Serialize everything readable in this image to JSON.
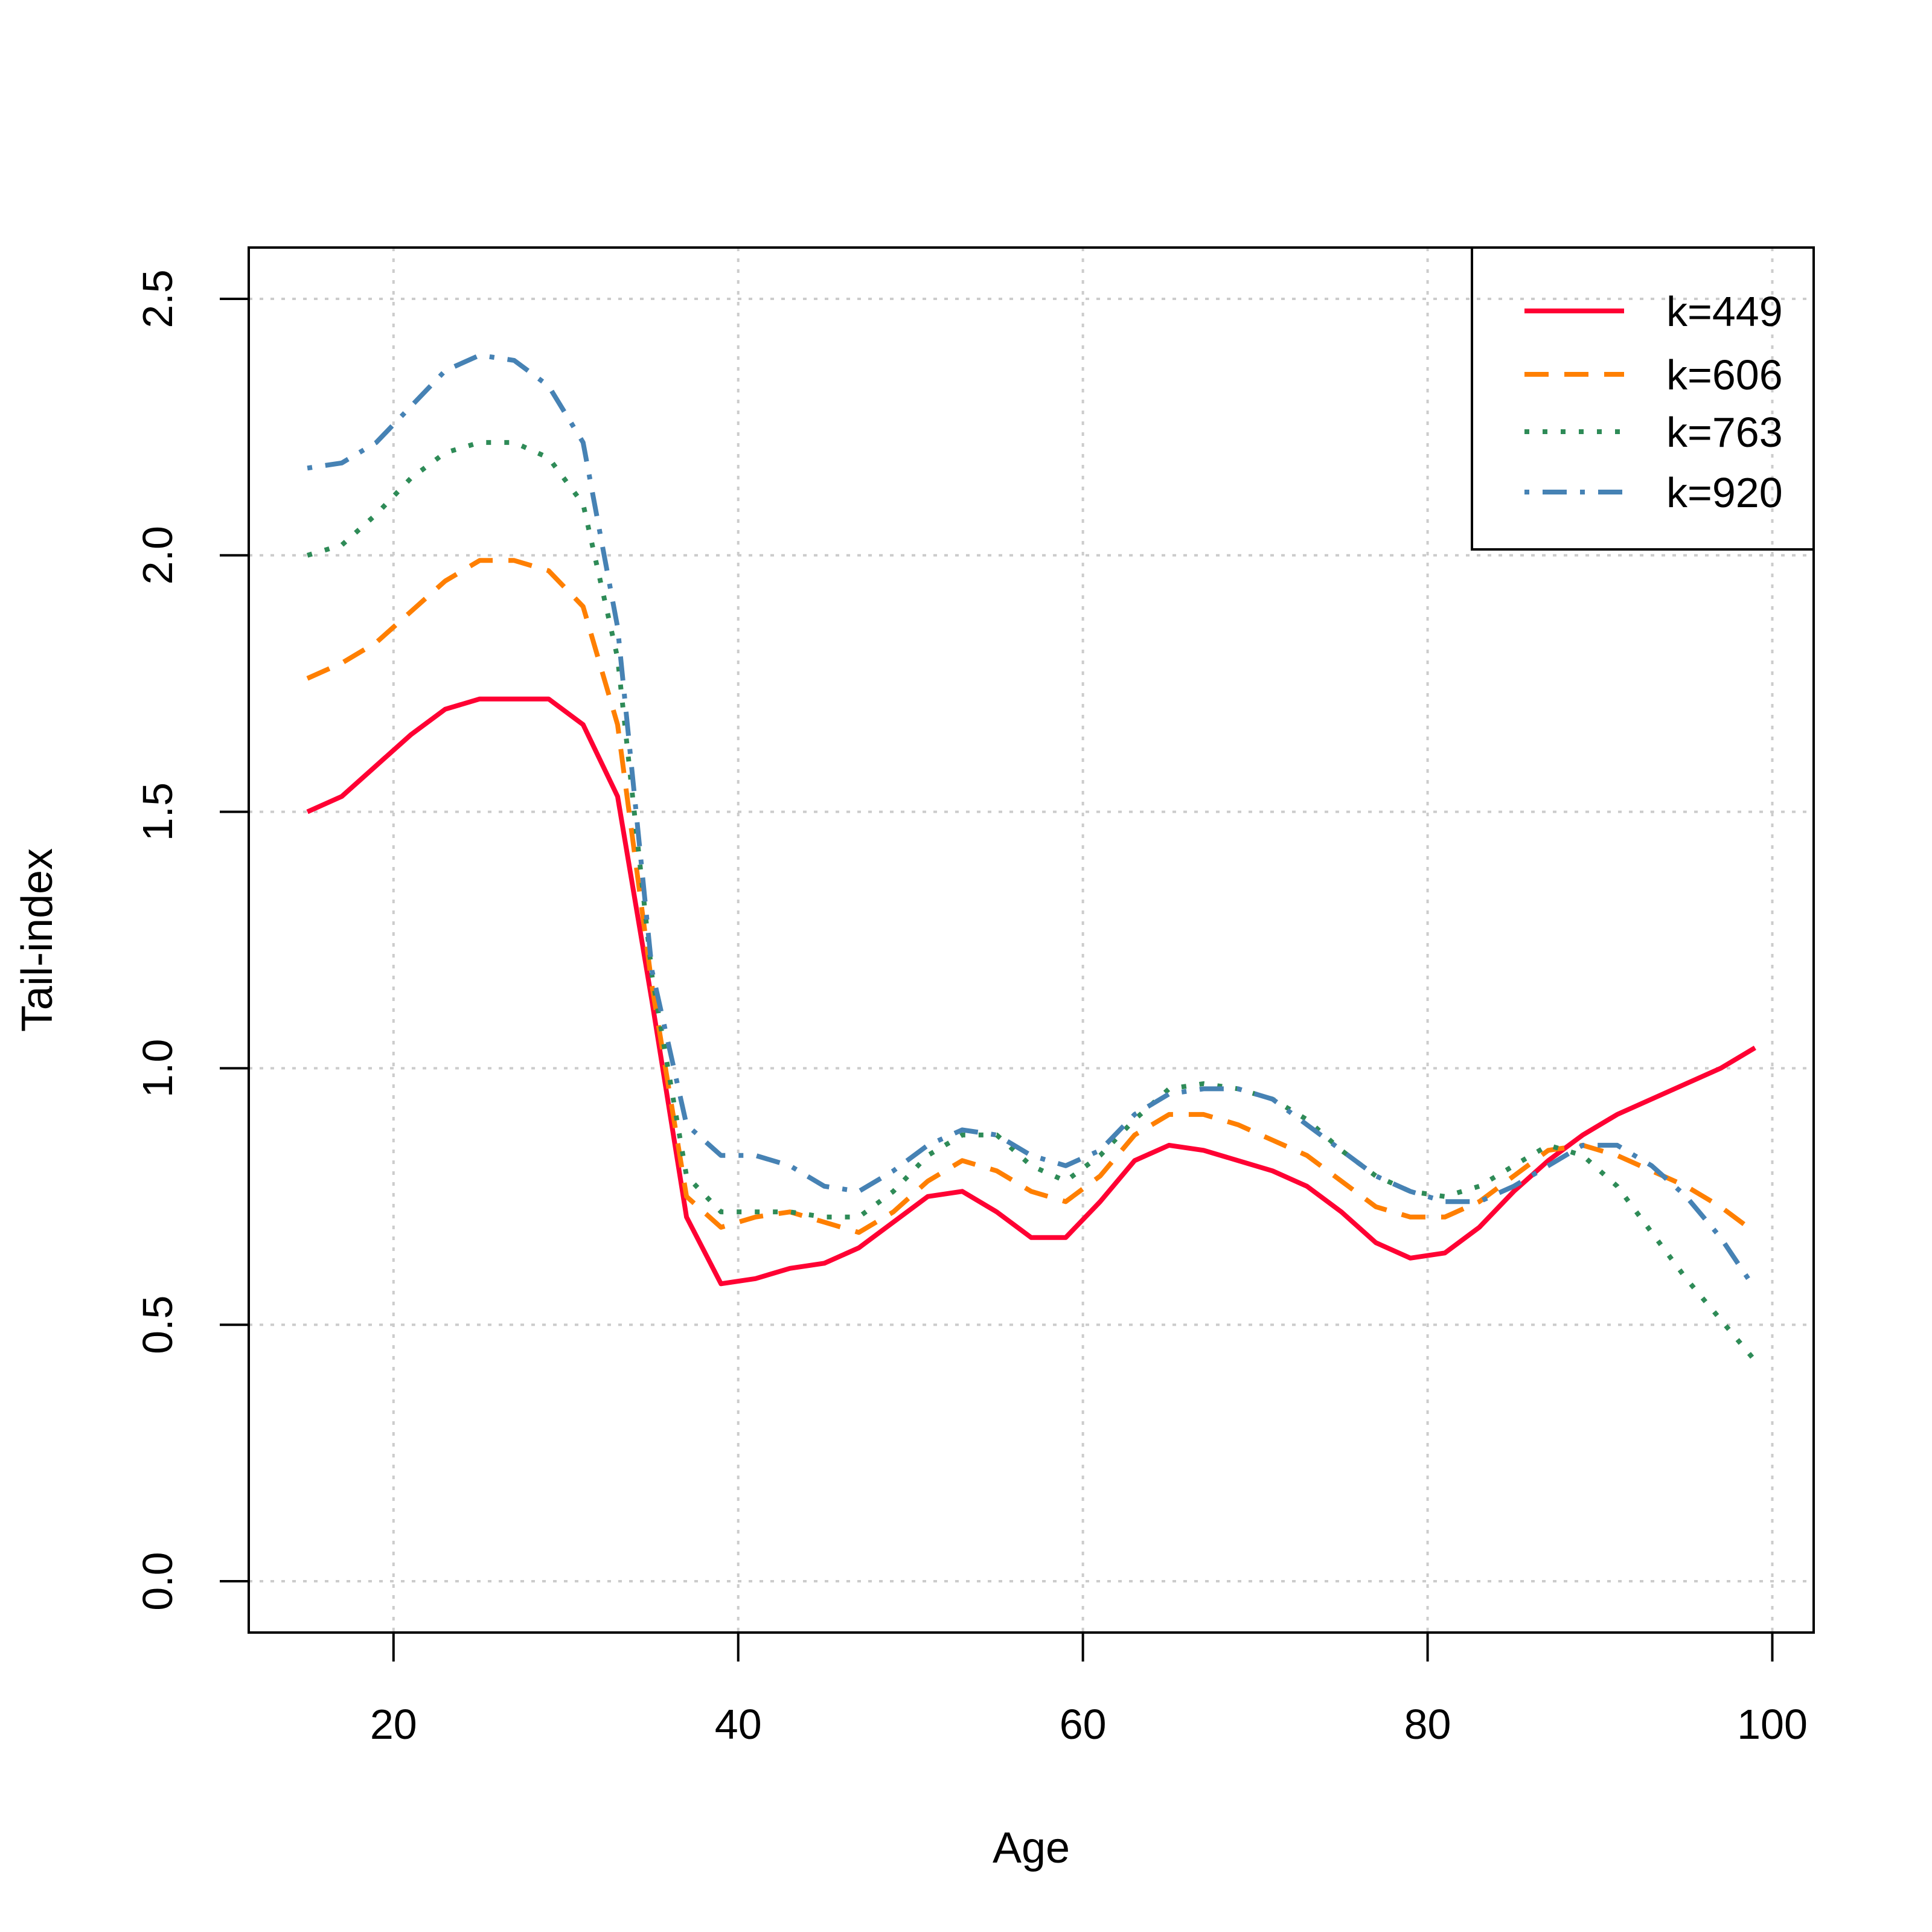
{
  "chart_data": {
    "type": "line",
    "title": "",
    "xlabel": "Age",
    "ylabel": "Tail-index",
    "xlim": [
      11.6,
      102.4
    ],
    "ylim": [
      -0.1,
      2.6
    ],
    "xticks": [
      20,
      40,
      60,
      80,
      100
    ],
    "yticks": [
      0.0,
      0.5,
      1.0,
      1.5,
      2.0,
      2.5
    ],
    "xtick_labels": [
      "20",
      "40",
      "60",
      "80",
      "100"
    ],
    "ytick_labels": [
      "0.0",
      "0.5",
      "1.0",
      "1.5",
      "2.0",
      "2.5"
    ],
    "grid": true,
    "legend_position": "top-right",
    "x": [
      15,
      17,
      19,
      21,
      23,
      25,
      27,
      29,
      31,
      33,
      35,
      37,
      39,
      41,
      43,
      45,
      47,
      49,
      51,
      53,
      55,
      57,
      59,
      61,
      63,
      65,
      67,
      69,
      71,
      73,
      75,
      77,
      79,
      81,
      83,
      85,
      87,
      89,
      91,
      93,
      95,
      97,
      99
    ],
    "series": [
      {
        "name": "k=449",
        "color": "#ff0033",
        "dash": "solid",
        "values": [
          1.5,
          1.53,
          1.59,
          1.65,
          1.7,
          1.72,
          1.72,
          1.72,
          1.67,
          1.53,
          1.13,
          0.71,
          0.58,
          0.59,
          0.61,
          0.62,
          0.65,
          0.7,
          0.75,
          0.76,
          0.72,
          0.67,
          0.67,
          0.74,
          0.82,
          0.85,
          0.84,
          0.82,
          0.8,
          0.77,
          0.72,
          0.66,
          0.63,
          0.64,
          0.69,
          0.76,
          0.82,
          0.87,
          0.91,
          0.94,
          0.97,
          1.0,
          1.04
        ]
      },
      {
        "name": "k=606",
        "color": "#ff7f00",
        "dash": "dashed",
        "values": [
          1.76,
          1.79,
          1.83,
          1.89,
          1.95,
          1.99,
          1.99,
          1.97,
          1.9,
          1.67,
          1.16,
          0.75,
          0.69,
          0.71,
          0.72,
          0.7,
          0.68,
          0.72,
          0.78,
          0.82,
          0.8,
          0.76,
          0.74,
          0.79,
          0.87,
          0.91,
          0.91,
          0.89,
          0.86,
          0.83,
          0.78,
          0.73,
          0.71,
          0.71,
          0.74,
          0.79,
          0.84,
          0.85,
          0.83,
          0.8,
          0.77,
          0.73,
          0.68
        ]
      },
      {
        "name": "k=763",
        "color": "#2e8b57",
        "dash": "dotted",
        "values": [
          2.0,
          2.02,
          2.08,
          2.15,
          2.2,
          2.22,
          2.22,
          2.19,
          2.1,
          1.8,
          1.18,
          0.79,
          0.72,
          0.72,
          0.72,
          0.71,
          0.71,
          0.76,
          0.83,
          0.87,
          0.87,
          0.81,
          0.78,
          0.83,
          0.9,
          0.96,
          0.97,
          0.96,
          0.94,
          0.9,
          0.84,
          0.79,
          0.76,
          0.75,
          0.77,
          0.81,
          0.85,
          0.83,
          0.77,
          0.68,
          0.59,
          0.51,
          0.43
        ]
      },
      {
        "name": "k=920",
        "color": "#4682b4",
        "dash": "dotdash",
        "values": [
          2.17,
          2.18,
          2.22,
          2.29,
          2.36,
          2.39,
          2.38,
          2.33,
          2.22,
          1.86,
          1.19,
          0.89,
          0.83,
          0.83,
          0.81,
          0.77,
          0.76,
          0.8,
          0.85,
          0.88,
          0.87,
          0.83,
          0.81,
          0.84,
          0.91,
          0.95,
          0.96,
          0.96,
          0.94,
          0.89,
          0.84,
          0.79,
          0.76,
          0.74,
          0.74,
          0.77,
          0.81,
          0.85,
          0.85,
          0.81,
          0.75,
          0.67,
          0.57
        ]
      }
    ]
  }
}
